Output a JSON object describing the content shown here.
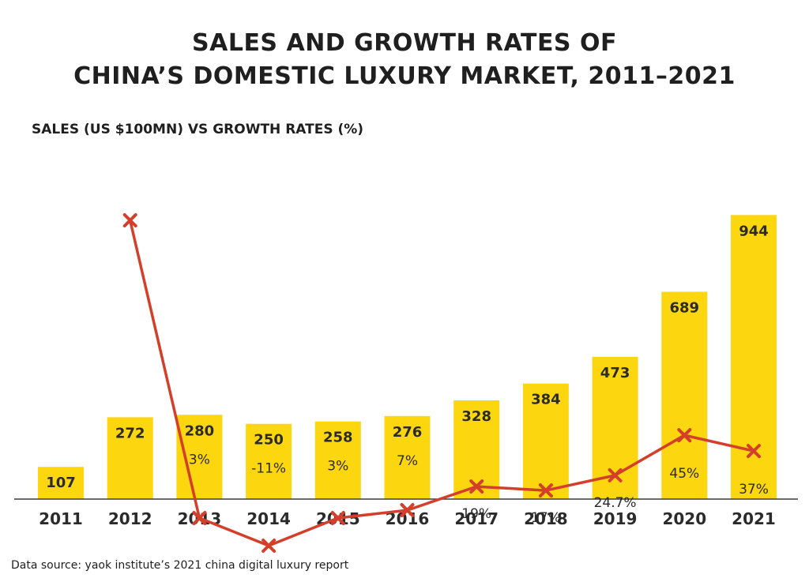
{
  "title_line1": "SALES AND GROWTH RATES OF",
  "title_line2": "CHINA’S DOMESTIC LUXURY MARKET, 2011–2021",
  "subtitle": "SALES (US $100MN) VS GROWTH RATES (%)",
  "source": "Data source: yaok institute’s 2021 china digital luxury report",
  "colors": {
    "bar": "#fcd60e",
    "line": "#d33f2b",
    "axis": "#3a3a3a"
  },
  "chart_data": {
    "type": "bar",
    "title": "SALES AND GROWTH RATES OF CHINA’S DOMESTIC LUXURY MARKET, 2011–2021",
    "subtitle": "SALES (US $100MN) VS GROWTH RATES (%)",
    "categories": [
      "2011",
      "2012",
      "2013",
      "2014",
      "2015",
      "2016",
      "2017",
      "2018",
      "2019",
      "2020",
      "2021"
    ],
    "series": [
      {
        "name": "Sales (US $100MN)",
        "type": "bar",
        "values": [
          107,
          272,
          280,
          250,
          258,
          276,
          328,
          384,
          473,
          689,
          944
        ],
        "labels": [
          "107",
          "272",
          "280",
          "250",
          "258",
          "276",
          "328",
          "384",
          "473",
          "689",
          "944"
        ]
      },
      {
        "name": "Growth rates (%)",
        "type": "line",
        "values": [
          null,
          154,
          3,
          -11,
          3,
          7,
          19,
          17,
          24.7,
          45,
          37
        ],
        "labels": [
          "",
          "",
          "3%",
          "-11%",
          "3%",
          "7%",
          "19%",
          "17%",
          "24.7%",
          "45%",
          "37%"
        ]
      }
    ],
    "ylim_sales": [
      0,
      950
    ],
    "ylim_rate": [
      -11,
      154
    ]
  }
}
